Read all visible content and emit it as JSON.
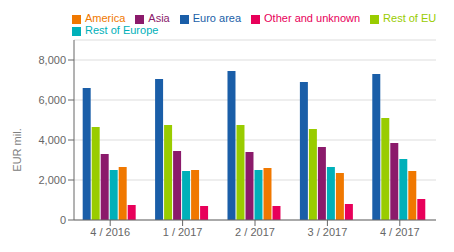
{
  "chart_data": {
    "type": "bar",
    "categories": [
      "4 / 2016",
      "1 / 2017",
      "2 / 2017",
      "3 / 2017",
      "4 / 2017"
    ],
    "series": [
      {
        "name": "Euro area",
        "color": "#1a5ea8",
        "values": [
          6600,
          7050,
          7450,
          6900,
          7300
        ]
      },
      {
        "name": "Rest of EU",
        "color": "#99cc00",
        "values": [
          4650,
          4750,
          4750,
          4550,
          5100
        ]
      },
      {
        "name": "Asia",
        "color": "#8b1a6b",
        "values": [
          3300,
          3450,
          3400,
          3650,
          3850
        ]
      },
      {
        "name": "Rest of Europe",
        "color": "#00b0b9",
        "values": [
          2500,
          2450,
          2500,
          2650,
          3050
        ]
      },
      {
        "name": "America",
        "color": "#f07800",
        "values": [
          2650,
          2500,
          2600,
          2350,
          2450
        ]
      },
      {
        "name": "Other and unknown",
        "color": "#e8005a",
        "values": [
          750,
          700,
          700,
          800,
          1050
        ]
      }
    ],
    "ylabel": "EUR mil.",
    "ylim": [
      0,
      9000
    ],
    "yticks": [
      0,
      {
        "value": 2000,
        "label": "2,000"
      },
      {
        "value": 4000,
        "label": "4,000"
      },
      {
        "value": 6000,
        "label": "6,000"
      },
      {
        "value": 8000,
        "label": "8,000"
      }
    ],
    "grid": true,
    "legend": "top"
  }
}
